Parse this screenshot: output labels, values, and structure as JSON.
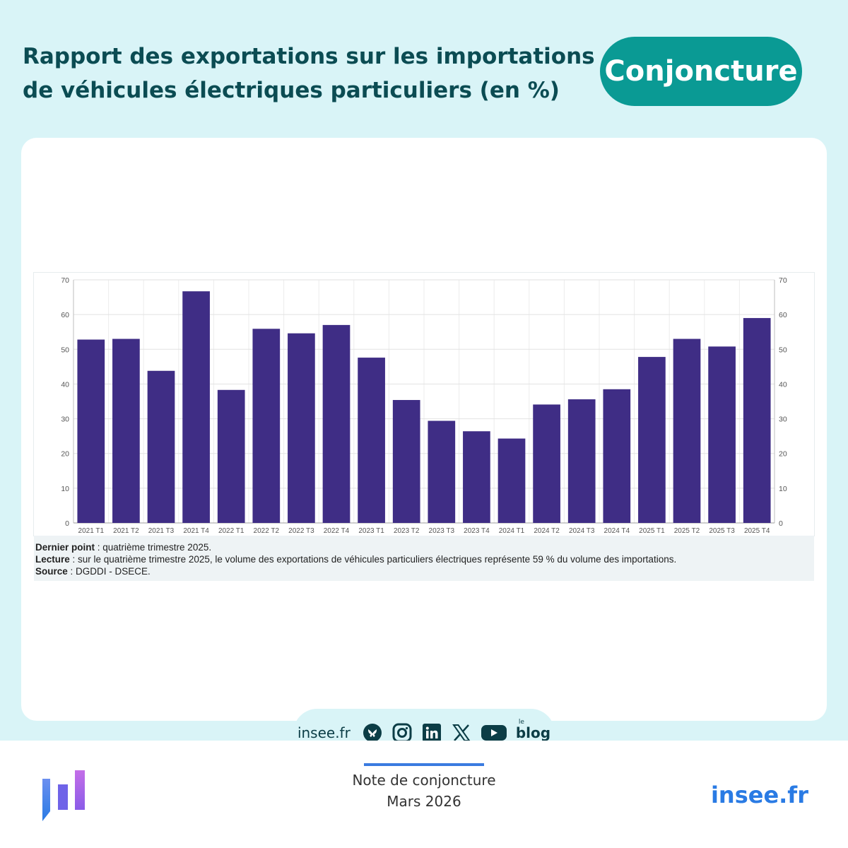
{
  "header": {
    "title_line1": "Rapport des exportations sur les importations",
    "title_line2": "de véhicules électriques particuliers (en %)",
    "badge": "Conjoncture"
  },
  "colors": {
    "bar": "#3f2d85",
    "badge": "#0a9a94",
    "background": "#d9f4f7",
    "title": "#0b4c53",
    "brand": "#2a7be4"
  },
  "chart_data": {
    "type": "bar",
    "categories": [
      "2021 T1",
      "2021 T2",
      "2021 T3",
      "2021 T4",
      "2022 T1",
      "2022 T2",
      "2022 T3",
      "2022 T4",
      "2023 T1",
      "2023 T2",
      "2023 T3",
      "2023 T4",
      "2024 T1",
      "2024 T2",
      "2024 T3",
      "2024 T4",
      "2025 T1",
      "2025 T2",
      "2025 T3",
      "2025 T4"
    ],
    "values": [
      52.8,
      53.0,
      43.8,
      66.7,
      38.3,
      55.9,
      54.6,
      57.0,
      47.6,
      35.4,
      29.4,
      26.4,
      24.3,
      34.1,
      35.6,
      38.5,
      47.8,
      53.0,
      50.8,
      59.0
    ],
    "ylim": [
      0,
      70
    ],
    "yticks": [
      0,
      10,
      20,
      30,
      40,
      50,
      60,
      70
    ],
    "grid": true,
    "right_axis": true
  },
  "notes": {
    "last_point_label": "Dernier point",
    "last_point_text": " : quatrième trimestre 2025.",
    "reading_label": "Lecture",
    "reading_text": " : sur le quatrième trimestre 2025, le volume des exportations de véhicules particuliers électriques représente 59 % du volume des importations.",
    "source_label": "Source",
    "source_text": " : DGDDI - DSECE."
  },
  "social": {
    "site": "insee.fr",
    "icons": [
      "bluesky-icon",
      "instagram-icon",
      "linkedin-icon",
      "x-icon",
      "youtube-icon",
      "blog-icon"
    ],
    "blog_small": "le",
    "blog_label": "blog"
  },
  "footer": {
    "note_title": "Note de conjoncture",
    "note_date": "Mars 2026",
    "brand": "insee.fr"
  }
}
